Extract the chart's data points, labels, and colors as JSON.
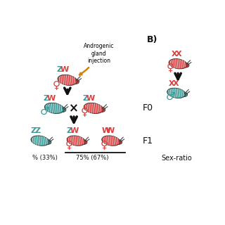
{
  "bg_color": "#ffffff",
  "title_right": "B)",
  "label_f0": "F0",
  "label_f1": "F1",
  "label_sexratio": "Sex-ratio",
  "androgenic_text": "Androgenic\ngland\ninjection",
  "androgenic_arrow_color": "#D4820A",
  "sex_ratio_bottom_left": "% (33%)",
  "sex_ratio_bottom_mid": "75% (67%)",
  "teal_color": "#3A9A96",
  "red_color": "#D94040",
  "female_symbol": "♀",
  "male_symbol": "♂",
  "label_ZW_Z": "Z",
  "label_ZW_W": "W",
  "label_ZZ_Z1": "Z",
  "label_ZZ_Z2": "Z",
  "label_WW_W1": "W",
  "label_WW_W2": "W",
  "label_XX_X1": "X",
  "label_XX_X2": "X",
  "arrow_color": "#111111"
}
